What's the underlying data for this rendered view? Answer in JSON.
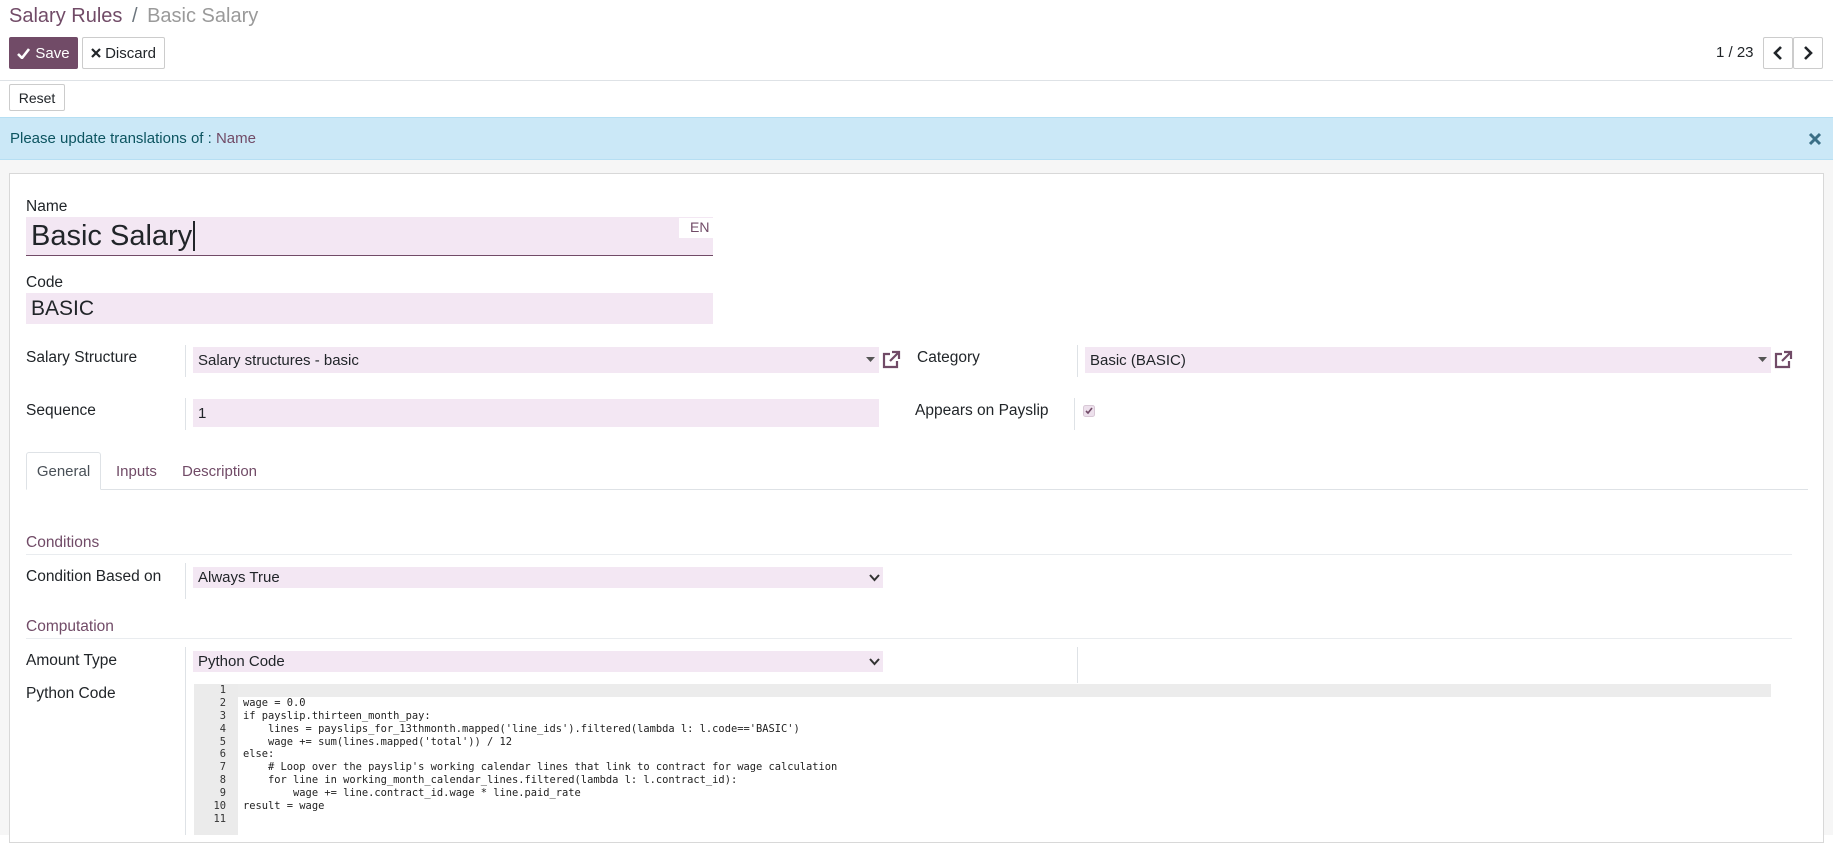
{
  "breadcrumb": {
    "parent": "Salary Rules",
    "separator": "/",
    "current": "Basic Salary"
  },
  "buttons": {
    "save": "Save",
    "discard": "Discard",
    "reset": "Reset"
  },
  "pager": {
    "position": "1 / 23"
  },
  "alert": {
    "text": "Please update translations of :",
    "field": "Name"
  },
  "form": {
    "name": {
      "label": "Name",
      "value": "Basic Salary",
      "lang": "EN"
    },
    "code": {
      "label": "Code",
      "value": "BASIC"
    },
    "salary_structure": {
      "label": "Salary Structure",
      "value": "Salary structures - basic"
    },
    "category": {
      "label": "Category",
      "value": "Basic (BASIC)"
    },
    "sequence": {
      "label": "Sequence",
      "value": "1"
    },
    "appears_on_payslip": {
      "label": "Appears on Payslip",
      "checked": true
    },
    "tabs": [
      "General",
      "Inputs",
      "Description"
    ],
    "conditions": {
      "heading": "Conditions",
      "label": "Condition Based on",
      "value": "Always True"
    },
    "computation": {
      "heading": "Computation",
      "amount_type_label": "Amount Type",
      "amount_type": "Python Code",
      "python_code_label": "Python Code"
    },
    "code_editor": {
      "line_numbers": [
        "1",
        "2",
        "3",
        "4",
        "5",
        "6",
        "7",
        "8",
        "9",
        "10",
        "11"
      ],
      "lines": [
        null,
        "wage = 0.0",
        "if payslip.thirteen_month_pay:",
        "    lines = payslips_for_13thmonth.mapped('line_ids').filtered(lambda l: l.code=='BASIC')",
        "    wage += sum(lines.mapped('total')) / 12",
        "else:",
        "    # Loop over the payslip's working calendar lines that link to contract for wage calculation",
        "    for line in working_month_calendar_lines.filtered(lambda l: l.contract_id):",
        "        wage += line.contract_id.wage * line.paid_rate",
        "result = wage",
        null
      ]
    }
  }
}
